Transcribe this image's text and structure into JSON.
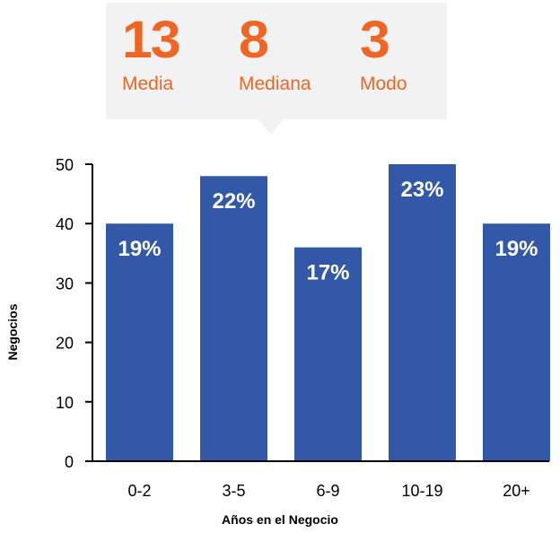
{
  "summary": {
    "stats": [
      {
        "value": "13",
        "label": "Media"
      },
      {
        "value": "8",
        "label": "Mediana"
      },
      {
        "value": "3",
        "label": "Modo"
      }
    ],
    "accent_color": "#ef6523",
    "box_color": "#f2f2f2"
  },
  "chart_data": {
    "type": "bar",
    "categories": [
      "0-2",
      "3-5",
      "6-9",
      "10-19",
      "20+"
    ],
    "values": [
      40,
      48,
      36,
      50,
      40
    ],
    "data_labels": [
      "19%",
      "22%",
      "17%",
      "23%",
      "19%"
    ],
    "xlabel": "Años en el Negocio",
    "ylabel": "Negocios",
    "ylim": [
      0,
      50
    ],
    "yticks": [
      0,
      10,
      20,
      30,
      40,
      50
    ],
    "grid": false,
    "bar_color": "#3358a8"
  }
}
